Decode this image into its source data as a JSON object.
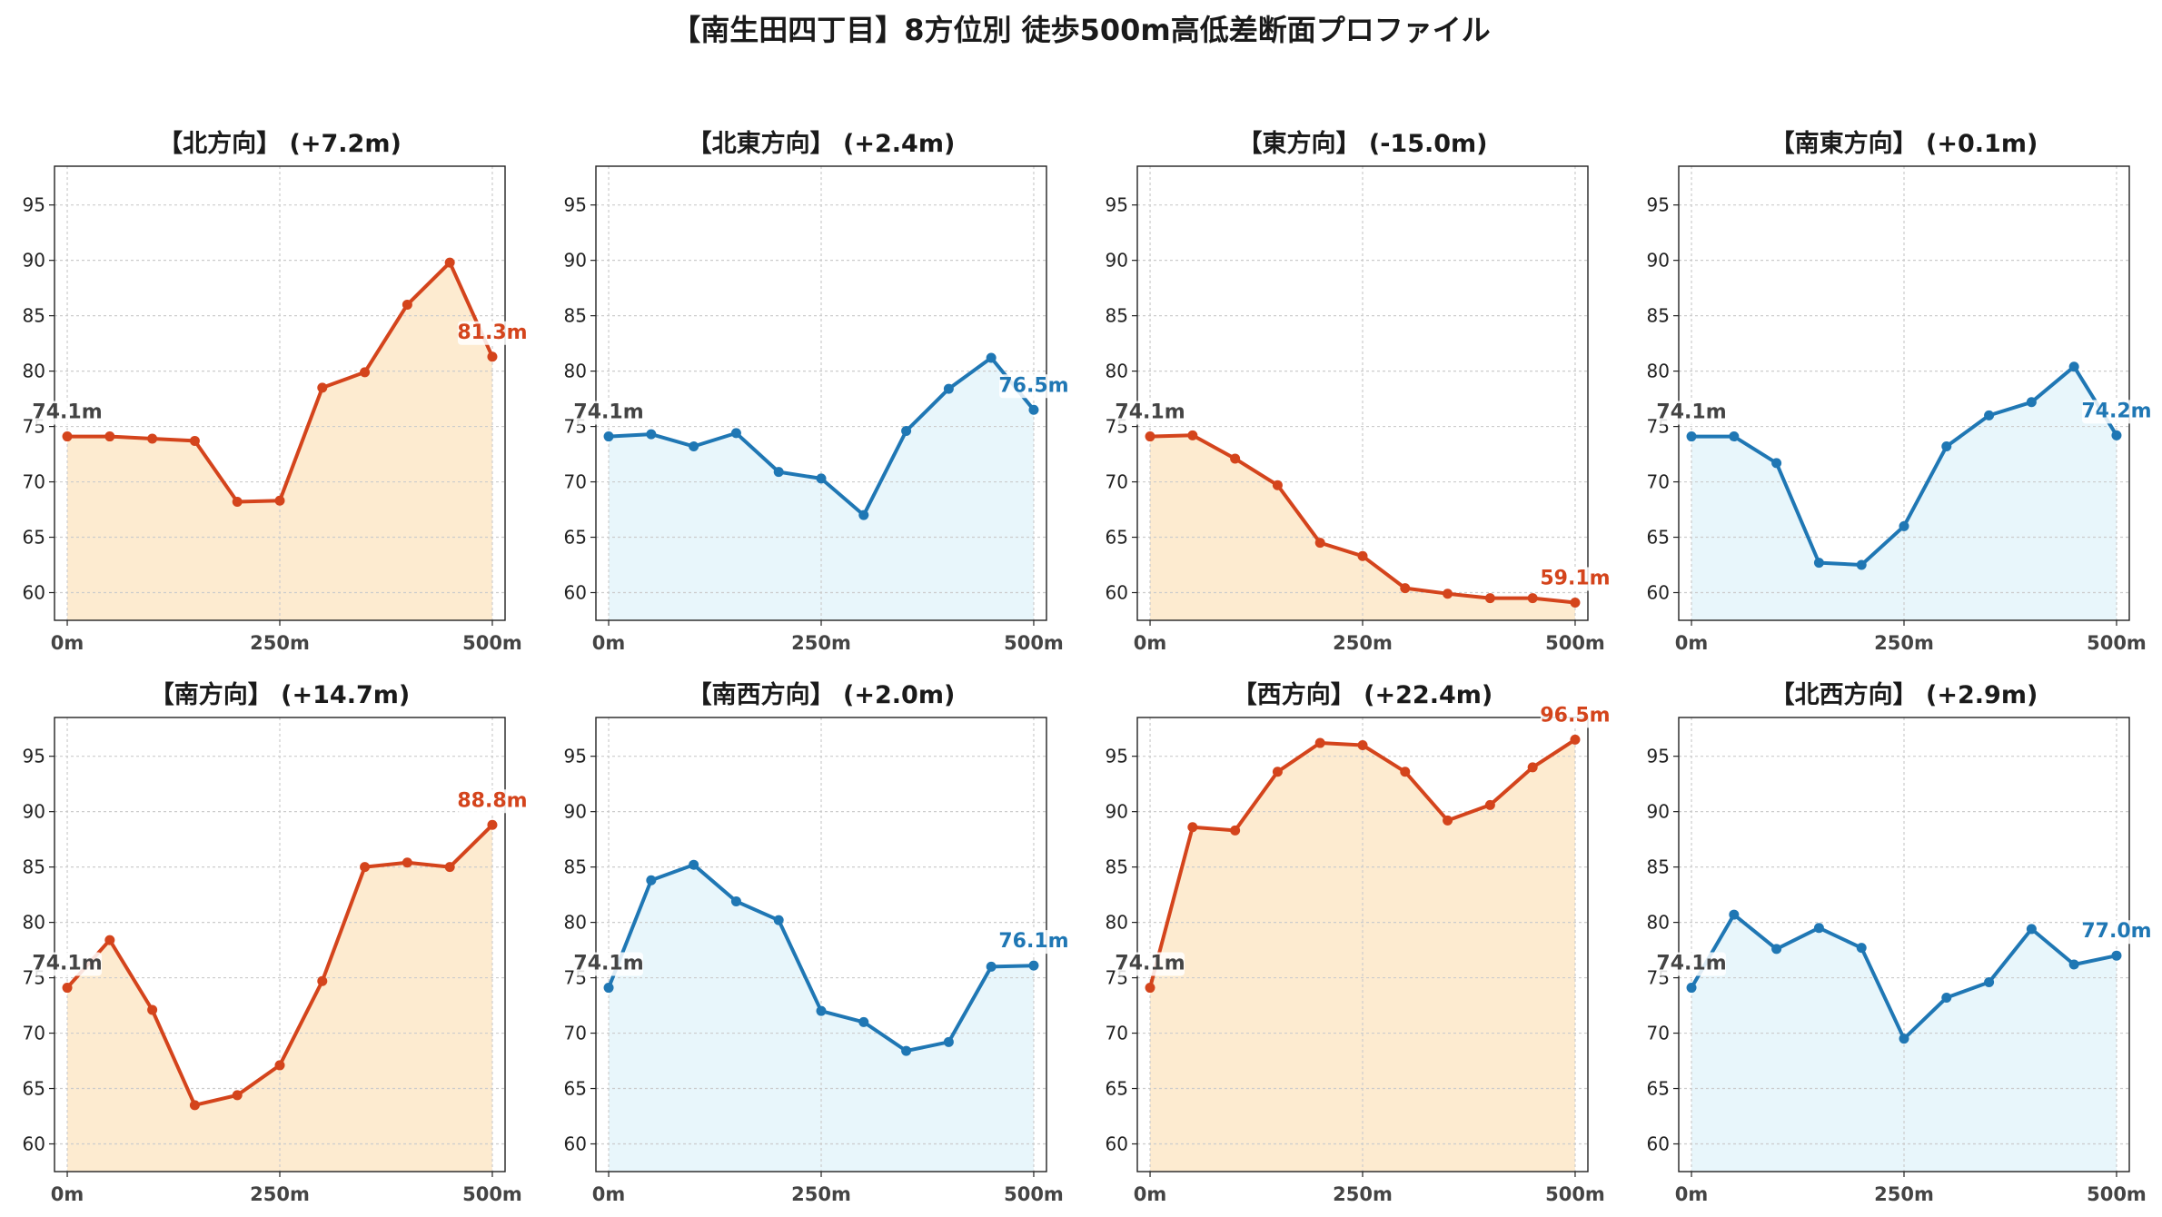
{
  "suptitle": "【南生田四丁目】8方位別 徒歩500m高低差断面プロファイル",
  "colors": {
    "up_line": "#d4441c",
    "up_fill": "#fdebd0",
    "down_line": "#1f77b4",
    "down_fill": "#e8f6fb",
    "start_label": "#444444",
    "grid": "#cccccc"
  },
  "chart_data": [
    {
      "type": "line",
      "title": "【北方向】 (+7.2m)",
      "trend": "up",
      "x": [
        0,
        50,
        100,
        150,
        200,
        250,
        300,
        350,
        400,
        450,
        500
      ],
      "values": [
        74.1,
        74.1,
        73.9,
        73.7,
        68.2,
        68.3,
        78.5,
        79.9,
        86.0,
        89.8,
        81.3
      ],
      "start_label": "74.1m",
      "end_label": "81.3m",
      "xlim": [
        -15,
        515
      ],
      "ylim": [
        57.5,
        98.5
      ],
      "yticks": [
        60,
        65,
        70,
        75,
        80,
        85,
        90,
        95
      ],
      "xticks": [
        0,
        250,
        500
      ],
      "xtick_labels": [
        "0m",
        "250m",
        "500m"
      ],
      "grid": true
    },
    {
      "type": "line",
      "title": "【北東方向】 (+2.4m)",
      "trend": "down",
      "x": [
        0,
        50,
        100,
        150,
        200,
        250,
        300,
        350,
        400,
        450,
        500
      ],
      "values": [
        74.1,
        74.3,
        73.2,
        74.4,
        70.9,
        70.3,
        67.0,
        74.6,
        78.4,
        81.2,
        76.5
      ],
      "start_label": "74.1m",
      "end_label": "76.5m",
      "xlim": [
        -15,
        515
      ],
      "ylim": [
        57.5,
        98.5
      ],
      "yticks": [
        60,
        65,
        70,
        75,
        80,
        85,
        90,
        95
      ],
      "xticks": [
        0,
        250,
        500
      ],
      "xtick_labels": [
        "0m",
        "250m",
        "500m"
      ],
      "grid": true
    },
    {
      "type": "line",
      "title": "【東方向】 (-15.0m)",
      "trend": "up",
      "x": [
        0,
        50,
        100,
        150,
        200,
        250,
        300,
        350,
        400,
        450,
        500
      ],
      "values": [
        74.1,
        74.2,
        72.1,
        69.7,
        64.5,
        63.3,
        60.4,
        59.9,
        59.5,
        59.5,
        59.1
      ],
      "start_label": "74.1m",
      "end_label": "59.1m",
      "xlim": [
        -15,
        515
      ],
      "ylim": [
        57.5,
        98.5
      ],
      "yticks": [
        60,
        65,
        70,
        75,
        80,
        85,
        90,
        95
      ],
      "xticks": [
        0,
        250,
        500
      ],
      "xtick_labels": [
        "0m",
        "250m",
        "500m"
      ],
      "grid": true
    },
    {
      "type": "line",
      "title": "【南東方向】 (+0.1m)",
      "trend": "down",
      "x": [
        0,
        50,
        100,
        150,
        200,
        250,
        300,
        350,
        400,
        450,
        500
      ],
      "values": [
        74.1,
        74.1,
        71.7,
        62.7,
        62.5,
        66.0,
        73.2,
        76.0,
        77.2,
        80.4,
        74.2
      ],
      "start_label": "74.1m",
      "end_label": "74.2m",
      "xlim": [
        -15,
        515
      ],
      "ylim": [
        57.5,
        98.5
      ],
      "yticks": [
        60,
        65,
        70,
        75,
        80,
        85,
        90,
        95
      ],
      "xticks": [
        0,
        250,
        500
      ],
      "xtick_labels": [
        "0m",
        "250m",
        "500m"
      ],
      "grid": true
    },
    {
      "type": "line",
      "title": "【南方向】 (+14.7m)",
      "trend": "up",
      "x": [
        0,
        50,
        100,
        150,
        200,
        250,
        300,
        350,
        400,
        450,
        500
      ],
      "values": [
        74.1,
        78.4,
        72.1,
        63.5,
        64.4,
        67.1,
        74.7,
        85.0,
        85.4,
        85.0,
        88.8
      ],
      "start_label": "74.1m",
      "end_label": "88.8m",
      "xlim": [
        -15,
        515
      ],
      "ylim": [
        57.5,
        98.5
      ],
      "yticks": [
        60,
        65,
        70,
        75,
        80,
        85,
        90,
        95
      ],
      "xticks": [
        0,
        250,
        500
      ],
      "xtick_labels": [
        "0m",
        "250m",
        "500m"
      ],
      "grid": true
    },
    {
      "type": "line",
      "title": "【南西方向】 (+2.0m)",
      "trend": "down",
      "x": [
        0,
        50,
        100,
        150,
        200,
        250,
        300,
        350,
        400,
        450,
        500
      ],
      "values": [
        74.1,
        83.8,
        85.2,
        81.9,
        80.2,
        72.0,
        71.0,
        68.4,
        69.2,
        76.0,
        76.1
      ],
      "start_label": "74.1m",
      "end_label": "76.1m",
      "xlim": [
        -15,
        515
      ],
      "ylim": [
        57.5,
        98.5
      ],
      "yticks": [
        60,
        65,
        70,
        75,
        80,
        85,
        90,
        95
      ],
      "xticks": [
        0,
        250,
        500
      ],
      "xtick_labels": [
        "0m",
        "250m",
        "500m"
      ],
      "grid": true
    },
    {
      "type": "line",
      "title": "【西方向】 (+22.4m)",
      "trend": "up",
      "x": [
        0,
        50,
        100,
        150,
        200,
        250,
        300,
        350,
        400,
        450,
        500
      ],
      "values": [
        74.1,
        88.6,
        88.3,
        93.6,
        96.2,
        96.0,
        93.6,
        89.2,
        90.6,
        94.0,
        96.5
      ],
      "start_label": "74.1m",
      "end_label": "96.5m",
      "xlim": [
        -15,
        515
      ],
      "ylim": [
        57.5,
        98.5
      ],
      "yticks": [
        60,
        65,
        70,
        75,
        80,
        85,
        90,
        95
      ],
      "xticks": [
        0,
        250,
        500
      ],
      "xtick_labels": [
        "0m",
        "250m",
        "500m"
      ],
      "grid": true
    },
    {
      "type": "line",
      "title": "【北西方向】 (+2.9m)",
      "trend": "down",
      "x": [
        0,
        50,
        100,
        150,
        200,
        250,
        300,
        350,
        400,
        450,
        500
      ],
      "values": [
        74.1,
        80.7,
        77.6,
        79.5,
        77.7,
        69.5,
        73.2,
        74.6,
        79.4,
        76.2,
        77.0
      ],
      "start_label": "74.1m",
      "end_label": "77.0m",
      "xlim": [
        -15,
        515
      ],
      "ylim": [
        57.5,
        98.5
      ],
      "yticks": [
        60,
        65,
        70,
        75,
        80,
        85,
        90,
        95
      ],
      "xticks": [
        0,
        250,
        500
      ],
      "xtick_labels": [
        "0m",
        "250m",
        "500m"
      ],
      "grid": true
    }
  ]
}
